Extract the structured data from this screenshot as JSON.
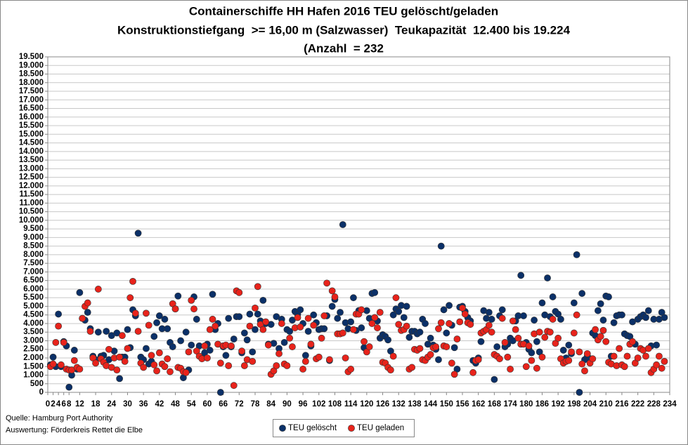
{
  "chart_data": {
    "type": "scatter",
    "title": "Containerschiffe HH Hafen 2016 TEU gelöscht/geladen",
    "subtitle": [
      "Konstruktionstiefgang  >= 16,00 m (Salzwasser)  Teukapazität  12.400 bis 19.224",
      "(Anzahl  = 232"
    ],
    "source": [
      "Quelle: Hamburg Port Authority",
      "Auswertung: Förderkreis Rettet die Elbe"
    ],
    "xlim": [
      0,
      234
    ],
    "xticks": [
      0,
      2,
      4,
      6,
      8,
      12,
      18,
      24,
      30,
      36,
      42,
      48,
      54,
      60,
      66,
      72,
      78,
      84,
      90,
      96,
      102,
      108,
      114,
      120,
      126,
      132,
      138,
      144,
      150,
      156,
      162,
      168,
      174,
      180,
      186,
      192,
      198,
      204,
      210,
      216,
      222,
      228,
      234
    ],
    "ylim": [
      0,
      19500
    ],
    "yticks": [
      0,
      500,
      {
        "value": 1000,
        "label": "1.000"
      },
      {
        "value": 1500,
        "label": "1.500"
      },
      {
        "value": 2000,
        "label": "2.000"
      },
      {
        "value": 2500,
        "label": "2.500"
      },
      {
        "value": 3000,
        "label": "3.000"
      },
      {
        "value": 3500,
        "label": "3.500"
      },
      {
        "value": 4000,
        "label": "4.000"
      },
      {
        "value": 4500,
        "label": "4.500"
      },
      {
        "value": 5000,
        "label": "5.000"
      },
      {
        "value": 5500,
        "label": "5.500"
      },
      {
        "value": 6000,
        "label": "6.000"
      },
      {
        "value": 6500,
        "label": "6.500"
      },
      {
        "value": 7000,
        "label": "7.000"
      },
      {
        "value": 7500,
        "label": "7.500"
      },
      {
        "value": 8000,
        "label": "8.000"
      },
      {
        "value": 8500,
        "label": "8.500"
      },
      {
        "value": 9000,
        "label": "9.000"
      },
      {
        "value": 9500,
        "label": "9.500"
      },
      {
        "value": 10000,
        "label": "10.000"
      },
      {
        "value": 10500,
        "label": "10.500"
      },
      {
        "value": 11000,
        "label": "11.000"
      },
      {
        "value": 11500,
        "label": "11.500"
      },
      {
        "value": 12000,
        "label": "12.000"
      },
      {
        "value": 12500,
        "label": "12.500"
      },
      {
        "value": 13000,
        "label": "13.000"
      },
      {
        "value": 13500,
        "label": "13.500"
      },
      {
        "value": 14000,
        "label": "14.000"
      },
      {
        "value": 14500,
        "label": "14.500"
      },
      {
        "value": 15000,
        "label": "15.000"
      },
      {
        "value": 15500,
        "label": "15.500"
      },
      {
        "value": 16000,
        "label": "16.000"
      },
      {
        "value": 16500,
        "label": "16.500"
      },
      {
        "value": 17000,
        "label": "17.000"
      },
      {
        "value": 17500,
        "label": "17.500"
      },
      {
        "value": 18000,
        "label": "18.000"
      },
      {
        "value": 18500,
        "label": "18.500"
      },
      {
        "value": 19000,
        "label": "19.000"
      },
      {
        "value": 19500,
        "label": "19.500"
      }
    ],
    "grid": true,
    "x": [
      1,
      2,
      3,
      4,
      5,
      6,
      7,
      8,
      9,
      10,
      11,
      12,
      13,
      14,
      15,
      16,
      17,
      18,
      19,
      20,
      21,
      22,
      23,
      24,
      25,
      26,
      27,
      28,
      29,
      30,
      31,
      32,
      33,
      34,
      35,
      36,
      37,
      38,
      39,
      40,
      41,
      42,
      43,
      44,
      45,
      46,
      47,
      48,
      49,
      50,
      51,
      52,
      53,
      54,
      55,
      56,
      57,
      58,
      59,
      60,
      61,
      62,
      63,
      64,
      65,
      66,
      67,
      68,
      69,
      70,
      71,
      72,
      73,
      74,
      75,
      76,
      77,
      78,
      79,
      80,
      81,
      82,
      83,
      84,
      85,
      86,
      87,
      88,
      89,
      90,
      91,
      92,
      93,
      94,
      95,
      96,
      97,
      98,
      99,
      100,
      101,
      102,
      103,
      104,
      105,
      106,
      107,
      108,
      109,
      110,
      111,
      112,
      113,
      114,
      115,
      116,
      117,
      118,
      119,
      120,
      121,
      122,
      123,
      124,
      125,
      126,
      127,
      128,
      129,
      130,
      131,
      132,
      133,
      134,
      135,
      136,
      137,
      138,
      139,
      140,
      141,
      142,
      143,
      144,
      145,
      146,
      147,
      148,
      149,
      150,
      151,
      152,
      153,
      154,
      155,
      156,
      157,
      158,
      159,
      160,
      161,
      162,
      163,
      164,
      165,
      166,
      167,
      168,
      169,
      170,
      171,
      172,
      173,
      174,
      175,
      176,
      177,
      178,
      179,
      180,
      181,
      182,
      183,
      184,
      185,
      186,
      187,
      188,
      189,
      190,
      191,
      192,
      193,
      194,
      195,
      196,
      197,
      198,
      199,
      200,
      201,
      202,
      203,
      204,
      205,
      206,
      207,
      208,
      209,
      210,
      211,
      212,
      213,
      214,
      215,
      216,
      217,
      218,
      219,
      220,
      221,
      222,
      223,
      224,
      225,
      226,
      227,
      228,
      229,
      230,
      231,
      232
    ],
    "series": [
      {
        "name": "TEU gelöscht",
        "color": "#0b3068",
        "values": [
          1600,
          2050,
          1500,
          4550,
          1500,
          2950,
          2700,
          300,
          1000,
          2450,
          1350,
          5800,
          4300,
          4200,
          4650,
          3700,
          2100,
          1900,
          3500,
          2100,
          2150,
          3550,
          1900,
          3300,
          2400,
          3450,
          800,
          2050,
          2050,
          3650,
          2600,
          4800,
          4450,
          9250,
          2050,
          1900,
          2550,
          1650,
          1800,
          3250,
          4050,
          4450,
          3700,
          4250,
          3700,
          2900,
          2650,
          4850,
          5600,
          3000,
          850,
          3500,
          1300,
          2750,
          5550,
          4250,
          2700,
          2000,
          2300,
          2800,
          2450,
          5700,
          3650,
          4000,
          0,
          2650,
          2150,
          4300,
          2650,
          3100,
          4400,
          4400,
          2300,
          3450,
          3050,
          4550,
          2350,
          3650,
          4550,
          4150,
          5350,
          4000,
          2800,
          3950,
          2850,
          4400,
          2550,
          4250,
          2900,
          3650,
          3550,
          4200,
          4700,
          4550,
          4800,
          4000,
          2150,
          3550,
          2700,
          4500,
          4050,
          3650,
          3700,
          3700,
          4450,
          1850,
          5000,
          5400,
          4300,
          4650,
          9750,
          4050,
          3700,
          4100,
          5500,
          3600,
          4750,
          3750,
          2600,
          4750,
          4300,
          5750,
          5800,
          4150,
          3150,
          3350,
          3250,
          3050,
          2400,
          4500,
          4850,
          4700,
          5050,
          4350,
          5000,
          3200,
          3550,
          3550,
          3400,
          3500,
          4250,
          4000,
          2800,
          3150,
          2750,
          2500,
          1900,
          8500,
          4800,
          3450,
          5050,
          3900,
          2600,
          1350,
          4950,
          5000,
          4700,
          4350,
          4150,
          1850,
          1700,
          2000,
          2950,
          4750,
          4300,
          4650,
          4250,
          750,
          2650,
          4450,
          4800,
          2650,
          2800,
          3150,
          3000,
          4150,
          4450,
          6800,
          4450,
          2900,
          2500,
          2300,
          4200,
          2950,
          2350,
          5200,
          4500,
          6650,
          4400,
          5550,
          4700,
          4550,
          4250,
          2450,
          2000,
          2750,
          2250,
          5200,
          8000,
          0,
          5750,
          1900,
          2100,
          1950,
          3450,
          3300,
          4750,
          5150,
          4200,
          5600,
          5550,
          2100,
          4050,
          4450,
          4500,
          4500,
          3400,
          3300,
          3250,
          4100,
          2800,
          4250,
          4400,
          4500,
          4350,
          4750,
          2700,
          4250,
          2750,
          4250,
          4650,
          4350
        ]
      },
      {
        "name": "TEU geladen",
        "color": "#e8231b",
        "values": [
          1500,
          1650,
          2900,
          3850,
          1600,
          2900,
          1350,
          1300,
          1300,
          1850,
          1450,
          1350,
          4300,
          5000,
          5200,
          3550,
          2000,
          1700,
          6000,
          1950,
          1750,
          1550,
          2500,
          1450,
          2000,
          1300,
          2050,
          3300,
          1800,
          2550,
          5500,
          6450,
          4600,
          3550,
          1700,
          1450,
          4600,
          3900,
          2150,
          1600,
          1250,
          2300,
          1650,
          1500,
          1950,
          1200,
          5150,
          4850,
          1450,
          1400,
          1200,
          1150,
          2350,
          5350,
          4850,
          2400,
          2100,
          1950,
          2700,
          2000,
          3650,
          4250,
          3850,
          2800,
          1700,
          2700,
          2750,
          1550,
          2700,
          400,
          5900,
          5800,
          2400,
          1550,
          1900,
          3850,
          1800,
          4900,
          6150,
          3950,
          3650,
          4100,
          2750,
          1050,
          1250,
          1550,
          2250,
          4000,
          1650,
          1550,
          3150,
          2650,
          3750,
          4350,
          3800,
          1350,
          1800,
          4300,
          2800,
          3900,
          1950,
          2050,
          3150,
          4450,
          6350,
          1900,
          5900,
          5550,
          3400,
          3400,
          3450,
          2000,
          1200,
          1350,
          3650,
          4550,
          4550,
          4800,
          2950,
          2350,
          2650,
          4000,
          4350,
          3750,
          4650,
          1750,
          1700,
          1450,
          1300,
          2100,
          5500,
          3950,
          3600,
          3650,
          3850,
          1350,
          1450,
          2500,
          2450,
          2550,
          1900,
          1850,
          2050,
          2200,
          2600,
          2650,
          3700,
          4050,
          2700,
          2650,
          4000,
          1700,
          1050,
          3100,
          4100,
          4900,
          4550,
          4050,
          3950,
          1150,
          1850,
          1900,
          3450,
          3550,
          3650,
          3900,
          3500,
          2200,
          2100,
          1950,
          4300,
          2900,
          2050,
          1350,
          4150,
          3650,
          3150,
          2800,
          2800,
          1500,
          2700,
          1850,
          3400,
          1400,
          3500,
          2050,
          3200,
          3550,
          3500,
          4250,
          2850,
          3150,
          1950,
          1700,
          1800,
          1850,
          2350,
          3450,
          4500,
          2350,
          1650,
          1250,
          2250,
          1700,
          1950,
          3650,
          3050,
          3250,
          3600,
          2950,
          1750,
          1650,
          2100,
          1550,
          2550,
          1600,
          1500,
          2100,
          2800,
          2950,
          1700,
          2000,
          2550,
          2450,
          2100,
          2550,
          1150,
          1350,
          1600,
          2100,
          1400,
          1800
        ]
      }
    ]
  }
}
